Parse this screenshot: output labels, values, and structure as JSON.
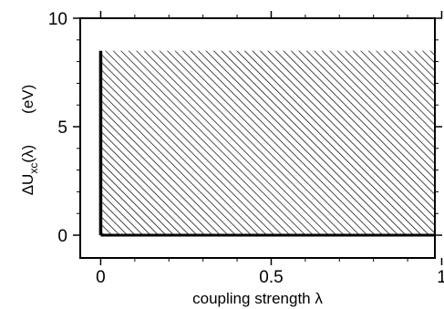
{
  "chart_data": {
    "type": "area",
    "title": "",
    "xlabel": "coupling strength λ",
    "ylabel": {
      "base": "ΔU",
      "subscript": "xc",
      "arg": "(λ)",
      "unit": "(eV)"
    },
    "xlim": [
      -0.06,
      0.98
    ],
    "ylim": [
      -1.05,
      10
    ],
    "x_ticks": [
      0,
      0.5,
      1
    ],
    "x_tick_labels": [
      "0",
      "0.5",
      "1"
    ],
    "y_ticks": [
      0,
      5,
      10
    ],
    "y_tick_labels": [
      "0",
      "5",
      "10"
    ],
    "grid": false,
    "series": [
      {
        "x": [
          0,
          0,
          1
        ],
        "y": [
          0,
          8.5,
          8.5
        ],
        "fill": "diagonal-hatch"
      }
    ],
    "colors": {
      "line": "#000000",
      "hatch": "#000000",
      "background": "#ffffff"
    }
  }
}
